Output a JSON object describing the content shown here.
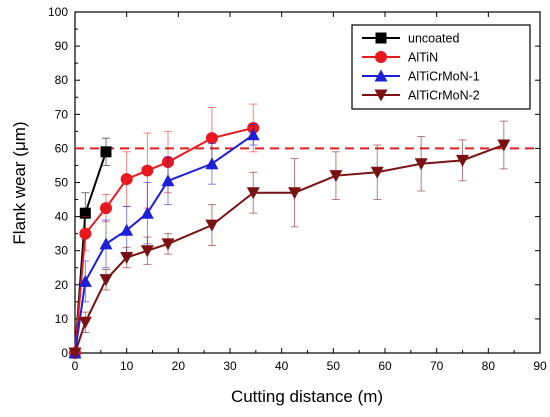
{
  "chart_data": {
    "type": "line",
    "xlabel": "Cutting distance (m)",
    "ylabel": "Flank wear (μm)",
    "xlim": [
      0,
      90
    ],
    "ylim": [
      0,
      100
    ],
    "xticks": [
      0,
      10,
      20,
      30,
      40,
      50,
      60,
      70,
      80,
      90
    ],
    "yticks": [
      0,
      10,
      20,
      30,
      40,
      50,
      60,
      70,
      80,
      90,
      100
    ],
    "grid": false,
    "legend_position": "top-right",
    "reference_line": {
      "y": 60,
      "style": "dashed",
      "color": "#e0201e"
    },
    "series": [
      {
        "name": "uncoated",
        "color": "#000000",
        "marker": "square",
        "x": [
          0,
          2,
          6
        ],
        "y": [
          0,
          41,
          59
        ],
        "err": [
          0,
          6,
          4
        ]
      },
      {
        "name": "AlTiN",
        "color": "#e8191d",
        "marker": "circle",
        "x": [
          0,
          2,
          6,
          10,
          14,
          18,
          26.5,
          34.5
        ],
        "y": [
          0,
          35,
          42.5,
          51,
          53.5,
          56,
          63,
          66
        ],
        "err": [
          0,
          5,
          4,
          8,
          11,
          9,
          9,
          7
        ]
      },
      {
        "name": "AlTiCrMoN-1",
        "color": "#1c20d8",
        "marker": "triangle-up",
        "x": [
          0,
          2,
          6,
          10,
          14,
          18,
          26.5,
          34.5
        ],
        "y": [
          0,
          21,
          32,
          36,
          41,
          50.5,
          55.5,
          64
        ],
        "err": [
          0,
          6,
          7,
          7,
          9,
          7,
          6,
          3
        ]
      },
      {
        "name": "AlTiCrMoN-2",
        "color": "#7a1212",
        "marker": "triangle-down",
        "x": [
          0,
          2,
          6,
          10,
          14,
          18,
          26.5,
          34.5,
          42.5,
          50.5,
          58.5,
          67,
          75,
          83
        ],
        "y": [
          0,
          9,
          21.5,
          28,
          30,
          32,
          37.5,
          47,
          47,
          52,
          53,
          55.5,
          56.5,
          61
        ],
        "err": [
          0,
          3,
          3,
          3,
          4,
          3,
          6,
          6,
          10,
          7,
          8,
          8,
          6,
          7
        ]
      }
    ]
  }
}
